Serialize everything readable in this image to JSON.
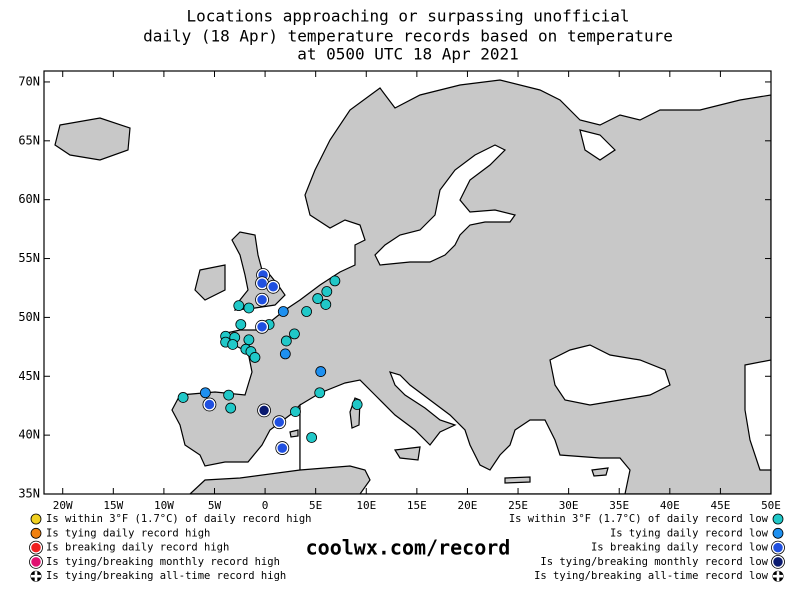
{
  "title": [
    "Locations approaching or surpassing unofficial",
    "daily (18 Apr) temperature records based on temperature",
    "at 0500 UTC 18 Apr 2021"
  ],
  "map": {
    "xlim": [
      -21.85,
      50
    ],
    "ylim": [
      35,
      70.93
    ],
    "xticks": [
      {
        "value": -20,
        "label": "20W"
      },
      {
        "value": -15,
        "label": "15W"
      },
      {
        "value": -10,
        "label": "10W"
      },
      {
        "value": -5,
        "label": "5W"
      },
      0,
      {
        "value": 5,
        "label": "5E"
      },
      {
        "value": 10,
        "label": "10E"
      },
      {
        "value": 15,
        "label": "15E"
      },
      {
        "value": 20,
        "label": "20E"
      },
      {
        "value": 25,
        "label": "25E"
      },
      {
        "value": 30,
        "label": "30E"
      },
      {
        "value": 35,
        "label": "35E"
      },
      {
        "value": 40,
        "label": "40E"
      },
      {
        "value": 45,
        "label": "45E"
      },
      {
        "value": 50,
        "label": "50E"
      }
    ],
    "yticks": [
      {
        "value": 35,
        "label": "35N"
      },
      {
        "value": 40,
        "label": "40N"
      },
      {
        "value": 45,
        "label": "45N"
      },
      {
        "value": 50,
        "label": "50N"
      },
      {
        "value": 55,
        "label": "55N"
      },
      {
        "value": 60,
        "label": "60N"
      },
      {
        "value": 65,
        "label": "65N"
      },
      {
        "value": 70,
        "label": "70N"
      }
    ]
  },
  "legend_left": [
    {
      "label": "Is within 3°F (1.7°C) of daily record high",
      "color": "#f0d020",
      "marker": "dot"
    },
    {
      "label": "Is tying daily record high",
      "color": "#f08010",
      "marker": "dot"
    },
    {
      "label": "Is breaking daily record high",
      "color": "#f02020",
      "marker": "ring"
    },
    {
      "label": "Is tying/breaking monthly record high",
      "color": "#e01070",
      "marker": "ring"
    },
    {
      "label": "Is tying/breaking all-time record high",
      "color": "#000000",
      "marker": "checker"
    }
  ],
  "legend_right": [
    {
      "label": "Is within 3°F (1.7°C) of daily record low",
      "color": "#20c8c8",
      "marker": "dot",
      "points": [
        [
          -2.6,
          51.0
        ],
        [
          -1.6,
          50.8
        ],
        [
          -2.4,
          49.4
        ],
        [
          -3.9,
          48.4
        ],
        [
          -3.0,
          48.3
        ],
        [
          -3.9,
          47.9
        ],
        [
          -3.2,
          47.7
        ],
        [
          -1.6,
          48.1
        ],
        [
          -1.9,
          47.3
        ],
        [
          -1.4,
          47.1
        ],
        [
          -1.0,
          46.6
        ],
        [
          0.4,
          49.4
        ],
        [
          2.1,
          48.0
        ],
        [
          2.9,
          48.6
        ],
        [
          4.1,
          50.5
        ],
        [
          5.2,
          51.6
        ],
        [
          6.1,
          52.2
        ],
        [
          6.9,
          53.1
        ],
        [
          6.0,
          51.1
        ],
        [
          -8.1,
          43.2
        ],
        [
          -3.4,
          42.3
        ],
        [
          -3.6,
          43.4
        ],
        [
          3.0,
          42.0
        ],
        [
          4.6,
          39.8
        ],
        [
          5.4,
          43.6
        ],
        [
          9.1,
          42.6
        ]
      ]
    },
    {
      "label": "Is tying daily record low",
      "color": "#1e90f0",
      "marker": "dot",
      "points": [
        [
          -5.9,
          43.6
        ],
        [
          1.8,
          50.5
        ],
        [
          2.0,
          46.9
        ],
        [
          5.5,
          45.4
        ]
      ]
    },
    {
      "label": "Is breaking daily record low",
      "color": "#2050e0",
      "marker": "ring",
      "points": [
        [
          -0.2,
          53.6
        ],
        [
          -0.3,
          52.9
        ],
        [
          0.8,
          52.6
        ],
        [
          -0.3,
          51.5
        ],
        [
          -0.3,
          49.2
        ],
        [
          -5.5,
          42.6
        ],
        [
          1.4,
          41.1
        ],
        [
          1.7,
          38.9
        ]
      ]
    },
    {
      "label": "Is tying/breaking monthly record low",
      "color": "#0a1a70",
      "marker": "ring",
      "points": [
        [
          -0.1,
          42.1
        ]
      ]
    },
    {
      "label": "Is tying/breaking all-time record low",
      "color": "#000000",
      "marker": "checker",
      "points": []
    }
  ],
  "footer": "coolwx.com/record"
}
